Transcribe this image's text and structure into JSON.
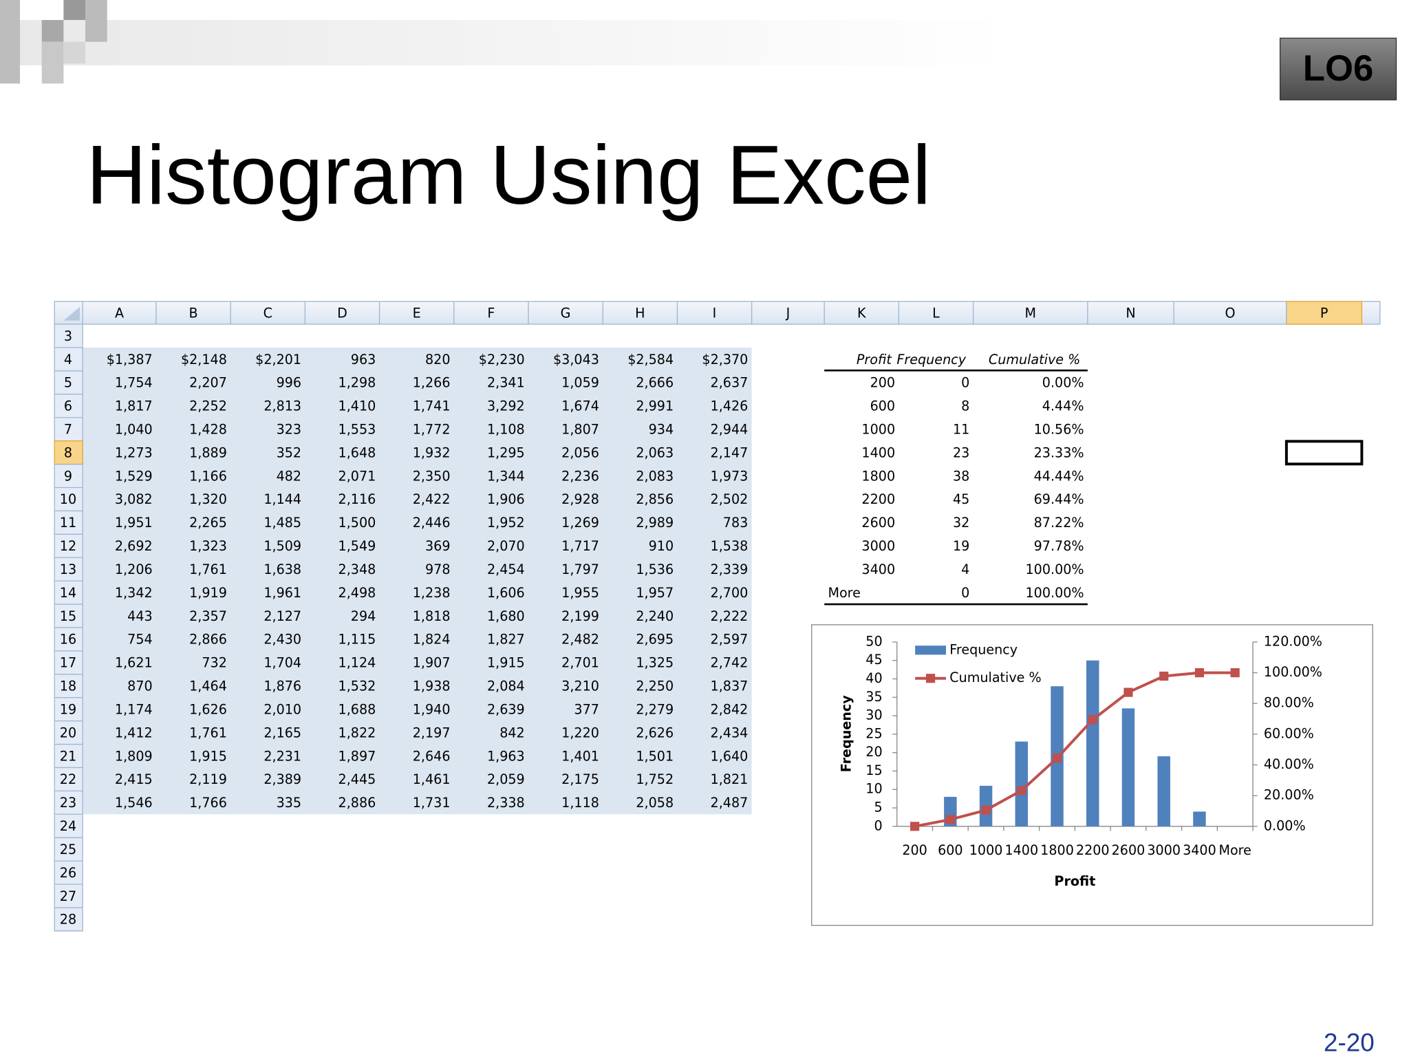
{
  "header": {
    "badge": "LO6",
    "title": "Histogram Using Excel"
  },
  "spreadsheet": {
    "columns": [
      "A",
      "B",
      "C",
      "D",
      "E",
      "F",
      "G",
      "H",
      "I",
      "J",
      "K",
      "L",
      "M",
      "N",
      "O",
      "P"
    ],
    "row_numbers": [
      "3",
      "4",
      "5",
      "6",
      "7",
      "8",
      "9",
      "10",
      "11",
      "12",
      "13",
      "14",
      "15",
      "16",
      "17",
      "18",
      "19",
      "20",
      "21",
      "22",
      "23",
      "24",
      "25",
      "26",
      "27",
      "28"
    ],
    "rows": [
      [
        "$1,387",
        "$2,148",
        "$2,201",
        "963",
        "820",
        "$2,230",
        "$3,043",
        "$2,584",
        "$2,370"
      ],
      [
        "1,754",
        "2,207",
        "996",
        "1,298",
        "1,266",
        "2,341",
        "1,059",
        "2,666",
        "2,637"
      ],
      [
        "1,817",
        "2,252",
        "2,813",
        "1,410",
        "1,741",
        "3,292",
        "1,674",
        "2,991",
        "1,426"
      ],
      [
        "1,040",
        "1,428",
        "323",
        "1,553",
        "1,772",
        "1,108",
        "1,807",
        "934",
        "2,944"
      ],
      [
        "1,273",
        "1,889",
        "352",
        "1,648",
        "1,932",
        "1,295",
        "2,056",
        "2,063",
        "2,147"
      ],
      [
        "1,529",
        "1,166",
        "482",
        "2,071",
        "2,350",
        "1,344",
        "2,236",
        "2,083",
        "1,973"
      ],
      [
        "3,082",
        "1,320",
        "1,144",
        "2,116",
        "2,422",
        "1,906",
        "2,928",
        "2,856",
        "2,502"
      ],
      [
        "1,951",
        "2,265",
        "1,485",
        "1,500",
        "2,446",
        "1,952",
        "1,269",
        "2,989",
        "783"
      ],
      [
        "2,692",
        "1,323",
        "1,509",
        "1,549",
        "369",
        "2,070",
        "1,717",
        "910",
        "1,538"
      ],
      [
        "1,206",
        "1,761",
        "1,638",
        "2,348",
        "978",
        "2,454",
        "1,797",
        "1,536",
        "2,339"
      ],
      [
        "1,342",
        "1,919",
        "1,961",
        "2,498",
        "1,238",
        "1,606",
        "1,955",
        "1,957",
        "2,700"
      ],
      [
        "443",
        "2,357",
        "2,127",
        "294",
        "1,818",
        "1,680",
        "2,199",
        "2,240",
        "2,222"
      ],
      [
        "754",
        "2,866",
        "2,430",
        "1,115",
        "1,824",
        "1,827",
        "2,482",
        "2,695",
        "2,597"
      ],
      [
        "1,621",
        "732",
        "1,704",
        "1,124",
        "1,907",
        "1,915",
        "2,701",
        "1,325",
        "2,742"
      ],
      [
        "870",
        "1,464",
        "1,876",
        "1,532",
        "1,938",
        "2,084",
        "3,210",
        "2,250",
        "1,837"
      ],
      [
        "1,174",
        "1,626",
        "2,010",
        "1,688",
        "1,940",
        "2,639",
        "377",
        "2,279",
        "2,842"
      ],
      [
        "1,412",
        "1,761",
        "2,165",
        "1,822",
        "2,197",
        "842",
        "1,220",
        "2,626",
        "2,434"
      ],
      [
        "1,809",
        "1,915",
        "2,231",
        "1,897",
        "2,646",
        "1,963",
        "1,401",
        "1,501",
        "1,640"
      ],
      [
        "2,415",
        "2,119",
        "2,389",
        "2,445",
        "1,461",
        "2,059",
        "2,175",
        "1,752",
        "1,821"
      ],
      [
        "1,546",
        "1,766",
        "335",
        "2,886",
        "1,731",
        "2,338",
        "1,118",
        "2,058",
        "2,487"
      ]
    ]
  },
  "frequency_table": {
    "header": [
      "Profit",
      "Frequency",
      "Cumulative %"
    ],
    "rows": [
      [
        "200",
        "0",
        "0.00%"
      ],
      [
        "600",
        "8",
        "4.44%"
      ],
      [
        "1000",
        "11",
        "10.56%"
      ],
      [
        "1400",
        "23",
        "23.33%"
      ],
      [
        "1800",
        "38",
        "44.44%"
      ],
      [
        "2200",
        "45",
        "69.44%"
      ],
      [
        "2600",
        "32",
        "87.22%"
      ],
      [
        "3000",
        "19",
        "97.78%"
      ],
      [
        "3400",
        "4",
        "100.00%"
      ],
      [
        "More",
        "0",
        "100.00%"
      ]
    ]
  },
  "chart_data": {
    "type": "bar",
    "categories": [
      "200",
      "600",
      "1000",
      "1400",
      "1800",
      "2200",
      "2600",
      "3000",
      "3400",
      "More"
    ],
    "series": [
      {
        "name": "Frequency",
        "color": "#4f81bd",
        "values": [
          0,
          8,
          11,
          23,
          38,
          45,
          32,
          19,
          4,
          0
        ]
      },
      {
        "name": "Cumulative %",
        "color": "#c0504d",
        "type": "line",
        "axis": "y2",
        "values": [
          0,
          4.44,
          10.56,
          23.33,
          44.44,
          69.44,
          87.22,
          97.78,
          100,
          100
        ]
      }
    ],
    "x_label": "Profit",
    "y_label": "Frequency",
    "ylim": [
      0,
      50
    ],
    "yticks": [
      0,
      5,
      10,
      15,
      20,
      25,
      30,
      35,
      40,
      45,
      50
    ],
    "y2lim": [
      0,
      120
    ],
    "y2ticks": [
      {
        "value": 0,
        "label": "0.00%"
      },
      {
        "value": 20,
        "label": "20.00%"
      },
      {
        "value": 40,
        "label": "40.00%"
      },
      {
        "value": 60,
        "label": "60.00%"
      },
      {
        "value": 80,
        "label": "80.00%"
      },
      {
        "value": 100,
        "label": "100.00%"
      },
      {
        "value": 120,
        "label": "120.00%"
      }
    ],
    "legend": "top-left"
  },
  "footer": {
    "page": "2-20"
  }
}
